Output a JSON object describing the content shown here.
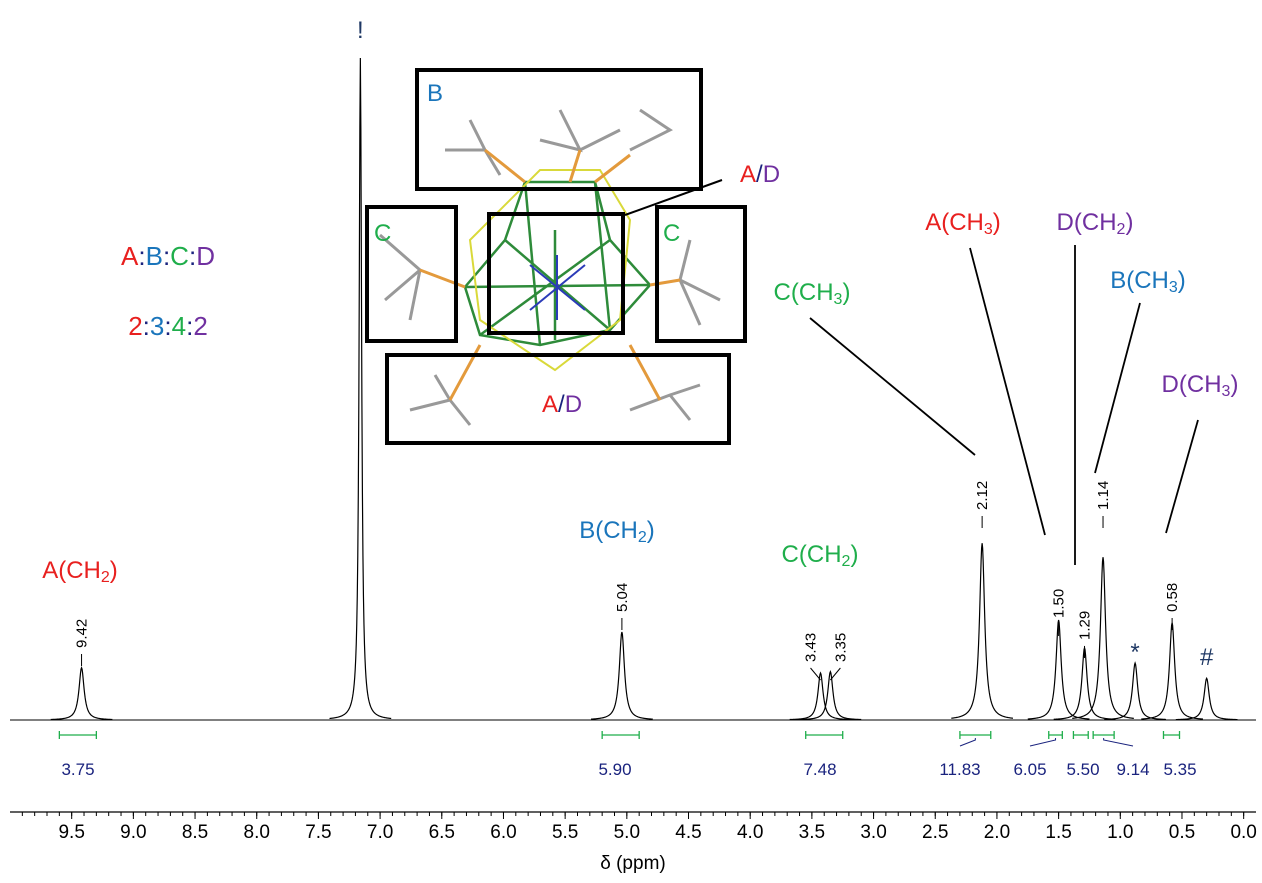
{
  "chart_data": {
    "type": "nmr",
    "x_label": "δ (ppm)",
    "xlim": [
      10,
      -0.1
    ],
    "xticks": [
      9.5,
      {
        "value": 9,
        "label": "9.0"
      },
      8.5,
      {
        "value": 8,
        "label": "8.0"
      },
      7.5,
      {
        "value": 7,
        "label": "7.0"
      },
      6.5,
      {
        "value": 6,
        "label": "6.0"
      },
      5.5,
      {
        "value": 5,
        "label": "5.0"
      },
      4.5,
      {
        "value": 4,
        "label": "4.0"
      },
      3.5,
      {
        "value": 3,
        "label": "3.0"
      },
      2.5,
      {
        "value": 2,
        "label": "2.0"
      },
      1.5,
      {
        "value": 1,
        "label": "1.0"
      },
      0.5,
      {
        "value": 0,
        "label": "0.0"
      }
    ],
    "ylim": [
      0,
      100
    ],
    "line_color": "#000000",
    "peaks": {
      "x": [
        9.42,
        7.16,
        5.04,
        3.43,
        3.35,
        2.12,
        1.5,
        1.29,
        1.14,
        0.88,
        0.58,
        0.3
      ],
      "values": [
        7.9,
        100,
        13.3,
        7.1,
        7.3,
        26.7,
        15.1,
        10.9,
        24.6,
        8.6,
        14.7,
        6.3
      ]
    },
    "peak_labels": {
      "values": [
        9.42,
        5.04,
        3.43,
        3.35,
        2.12,
        1.5,
        1.29,
        1.14,
        0.58
      ],
      "value_labels": [
        "9.42",
        "5.04",
        "3.43",
        "3.35",
        "2.12",
        "1.50",
        "1.29",
        "1.14",
        "0.58"
      ]
    },
    "integrals": {
      "color": "#1fae4b",
      "label_color": "#1a237e",
      "ranges": [
        [
          9.6,
          9.3
        ],
        [
          5.2,
          4.9
        ],
        [
          3.55,
          3.25
        ],
        [
          2.3,
          2.05
        ],
        [
          1.58,
          1.47
        ],
        [
          1.38,
          1.26
        ],
        [
          1.22,
          1.05
        ],
        [
          0.65,
          0.52
        ]
      ],
      "values": [
        3.75,
        5.9,
        7.48,
        11.83,
        6.05,
        5.5,
        9.14,
        5.35
      ],
      "value_labels": [
        "3.75",
        "5.90",
        "7.48",
        "11.83",
        "6.05",
        "5.50",
        "9.14",
        "5.35"
      ]
    },
    "markers": [
      {
        "text": "!",
        "x": 7.16
      },
      {
        "text": "*",
        "x": 0.88
      },
      {
        "text": "#",
        "x": 0.3
      }
    ],
    "annotations": [
      {
        "parts": [
          "A(CH",
          "2",
          ")"
        ],
        "color": "#e8201f"
      },
      {
        "parts": [
          "B(CH",
          "2",
          ")"
        ],
        "color": "#1a75bb"
      },
      {
        "parts": [
          "C(CH",
          "2",
          ")"
        ],
        "color": "#1fae4b"
      },
      {
        "parts": [
          "C(CH",
          "3",
          ")"
        ],
        "color": "#1fae4b"
      },
      {
        "parts": [
          "A(CH",
          "3",
          ")"
        ],
        "color": "#e8201f"
      },
      {
        "parts": [
          "D(CH",
          "2",
          ")"
        ],
        "color": "#7030a0"
      },
      {
        "parts": [
          "B(CH",
          "3",
          ")"
        ],
        "color": "#1a75bb"
      },
      {
        "parts": [
          "D(CH",
          "3",
          ")"
        ],
        "color": "#7030a0"
      }
    ],
    "ratio": {
      "letters": [
        "A",
        "B",
        "C",
        "D"
      ],
      "numbers": [
        2,
        3,
        4,
        2
      ],
      "separator": ":",
      "colors": [
        "#e8201f",
        "#1a75bb",
        "#1fae4b",
        "#7030a0"
      ]
    },
    "structure_labels": {
      "box_b": "B",
      "box_c": "C",
      "separator": "/",
      "a": "A",
      "d": "D"
    }
  }
}
